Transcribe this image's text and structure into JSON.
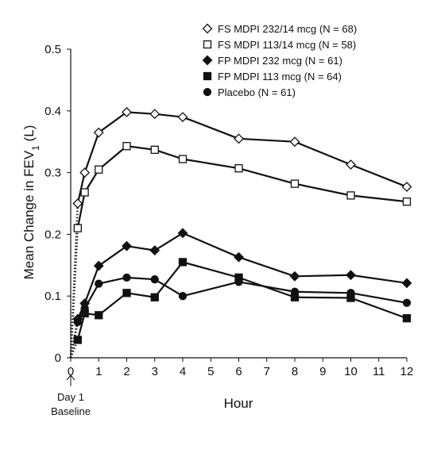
{
  "chart_data": {
    "type": "line",
    "xlabel": "Hour",
    "ylabel_main": "Mean Change in FEV",
    "ylabel_sub": "1",
    "ylabel_unit": " (L)",
    "xlim": [
      0,
      12
    ],
    "ylim": [
      0,
      0.5
    ],
    "x_ticks": [
      "0",
      "1",
      "2",
      "3",
      "4",
      "5",
      "6",
      "7",
      "8",
      "9",
      "10",
      "11",
      "12"
    ],
    "y_ticks": [
      "0",
      "0.1",
      "0.2",
      "0.3",
      "0.4",
      "0.5"
    ],
    "grid": false,
    "legend_position": "top-right",
    "baseline_note": [
      "Day 1",
      "Baseline"
    ],
    "series": [
      {
        "name": "FS MDPI 232/14 mcg (N = 68)",
        "marker": "diamond-open",
        "x": [
          0,
          0.25,
          0.5,
          1,
          2,
          3,
          4,
          6,
          8,
          10,
          12
        ],
        "y": [
          0,
          0.25,
          0.3,
          0.365,
          0.398,
          0.395,
          0.39,
          0.355,
          0.35,
          0.313,
          0.277
        ]
      },
      {
        "name": "FS MDPI 113/14 mcg (N = 58)",
        "marker": "square-open",
        "x": [
          0,
          0.25,
          0.5,
          1,
          2,
          3,
          4,
          6,
          8,
          10,
          12
        ],
        "y": [
          0,
          0.21,
          0.268,
          0.305,
          0.343,
          0.337,
          0.322,
          0.307,
          0.282,
          0.263,
          0.253
        ]
      },
      {
        "name": "FP MDPI 232 mcg (N = 61)",
        "marker": "diamond-filled",
        "x": [
          0,
          0.25,
          0.5,
          1,
          2,
          3,
          4,
          6,
          8,
          10,
          12
        ],
        "y": [
          0,
          0.063,
          0.088,
          0.149,
          0.181,
          0.174,
          0.202,
          0.163,
          0.132,
          0.134,
          0.121
        ]
      },
      {
        "name": "FP MDPI 113 mcg (N = 64)",
        "marker": "square-filled",
        "x": [
          0,
          0.25,
          0.5,
          1,
          2,
          3,
          4,
          6,
          8,
          10,
          12
        ],
        "y": [
          0,
          0.029,
          0.072,
          0.069,
          0.105,
          0.098,
          0.155,
          0.13,
          0.098,
          0.097,
          0.064
        ]
      },
      {
        "name": "Placebo (N = 61)",
        "marker": "circle-filled",
        "x": [
          0,
          0.25,
          0.5,
          1,
          2,
          3,
          4,
          6,
          8,
          10,
          12
        ],
        "y": [
          0,
          0.058,
          0.08,
          0.12,
          0.13,
          0.127,
          0.1,
          0.123,
          0.107,
          0.105,
          0.089
        ]
      }
    ]
  },
  "colors": {
    "line": "#111111",
    "axis": "#111111",
    "background": "#ffffff"
  }
}
